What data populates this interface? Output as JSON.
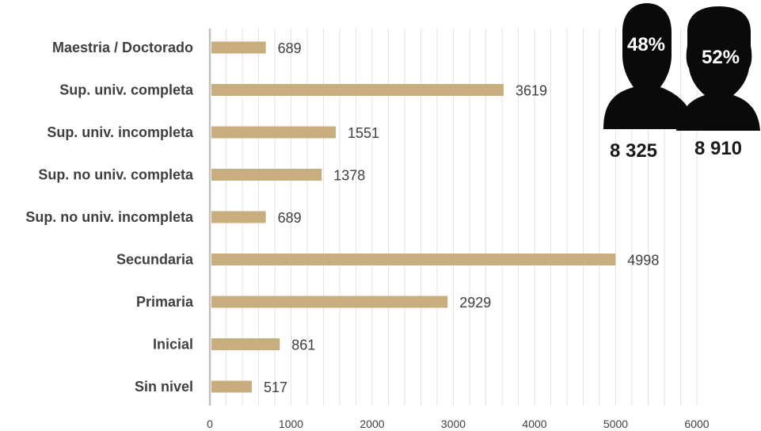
{
  "chart_data": {
    "type": "bar",
    "orientation": "horizontal",
    "categories": [
      "Maestria / Doctorado",
      "Sup. univ. completa",
      "Sup. univ. incompleta",
      "Sup. no univ. completa",
      "Sup. no univ. incompleta",
      "Secundaria",
      "Primaria",
      "Inicial",
      "Sin nivel"
    ],
    "values": [
      689,
      3619,
      1551,
      1378,
      689,
      4998,
      2929,
      861,
      517
    ],
    "xlim": [
      0,
      6000
    ],
    "xticks": [
      0,
      1000,
      2000,
      3000,
      4000,
      5000,
      6000
    ],
    "grid": "vertical",
    "bar_color": "#C8AD7F",
    "title": "",
    "xlabel": "",
    "ylabel": ""
  },
  "gender": {
    "male": {
      "percent": "48%",
      "count": "8 325",
      "icon": "male-silhouette-icon"
    },
    "female": {
      "percent": "52%",
      "count": "8 910",
      "icon": "female-silhouette-icon"
    }
  }
}
